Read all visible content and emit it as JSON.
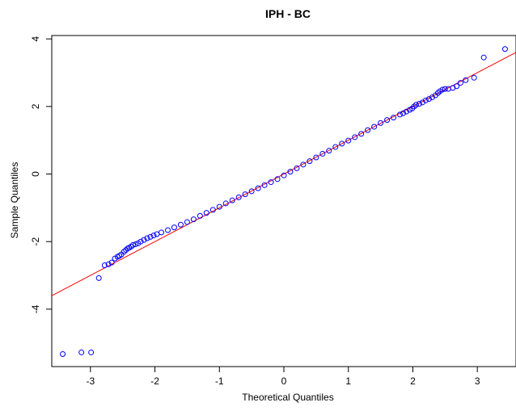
{
  "chart_data": {
    "type": "scatter",
    "title": "IPH - BC",
    "xlabel": "Theoretical Quantiles",
    "ylabel": "Sample Quantiles",
    "xlim": [
      -3.6,
      3.6
    ],
    "ylim": [
      -5.7,
      4.1
    ],
    "x_ticks": [
      -3,
      -2,
      -1,
      0,
      1,
      2,
      3
    ],
    "y_ticks": [
      -4,
      -2,
      0,
      2,
      4
    ],
    "x_tick_labels": [
      "-3",
      "-2",
      "-1",
      "0",
      "1",
      "2",
      "3"
    ],
    "y_tick_labels": [
      "-4",
      "-2",
      "0",
      "2",
      "4"
    ],
    "grid": false,
    "reference_line": {
      "slope": 1.0,
      "intercept": 0.0,
      "color": "#ff0000"
    },
    "points_color": "#0000ff",
    "points": [
      [
        -3.43,
        -5.33
      ],
      [
        -3.14,
        -5.28
      ],
      [
        -2.99,
        -5.28
      ],
      [
        -2.87,
        -3.08
      ],
      [
        -2.78,
        -2.7
      ],
      [
        -2.72,
        -2.67
      ],
      [
        -2.67,
        -2.62
      ],
      [
        -2.62,
        -2.5
      ],
      [
        -2.58,
        -2.45
      ],
      [
        -2.55,
        -2.42
      ],
      [
        -2.52,
        -2.38
      ],
      [
        -2.48,
        -2.3
      ],
      [
        -2.45,
        -2.25
      ],
      [
        -2.42,
        -2.2
      ],
      [
        -2.4,
        -2.18
      ],
      [
        -2.37,
        -2.15
      ],
      [
        -2.34,
        -2.1
      ],
      [
        -2.3,
        -2.08
      ],
      [
        -2.26,
        -2.05
      ],
      [
        -2.22,
        -2.0
      ],
      [
        -2.17,
        -1.95
      ],
      [
        -2.12,
        -1.9
      ],
      [
        -2.07,
        -1.86
      ],
      [
        -2.02,
        -1.82
      ],
      [
        -1.97,
        -1.78
      ],
      [
        -1.9,
        -1.73
      ],
      [
        -1.8,
        -1.66
      ],
      [
        -1.7,
        -1.58
      ],
      [
        -1.6,
        -1.5
      ],
      [
        -1.5,
        -1.42
      ],
      [
        -1.4,
        -1.34
      ],
      [
        -1.3,
        -1.24
      ],
      [
        -1.2,
        -1.15
      ],
      [
        -1.1,
        -1.06
      ],
      [
        -1.0,
        -0.97
      ],
      [
        -0.9,
        -0.87
      ],
      [
        -0.8,
        -0.78
      ],
      [
        -0.7,
        -0.69
      ],
      [
        -0.6,
        -0.6
      ],
      [
        -0.5,
        -0.51
      ],
      [
        -0.4,
        -0.42
      ],
      [
        -0.3,
        -0.33
      ],
      [
        -0.2,
        -0.24
      ],
      [
        -0.1,
        -0.15
      ],
      [
        0.0,
        -0.04
      ],
      [
        0.1,
        0.07
      ],
      [
        0.2,
        0.17
      ],
      [
        0.3,
        0.28
      ],
      [
        0.4,
        0.38
      ],
      [
        0.5,
        0.49
      ],
      [
        0.6,
        0.6
      ],
      [
        0.7,
        0.69
      ],
      [
        0.8,
        0.8
      ],
      [
        0.9,
        0.9
      ],
      [
        1.0,
        0.99
      ],
      [
        1.1,
        1.09
      ],
      [
        1.2,
        1.19
      ],
      [
        1.3,
        1.3
      ],
      [
        1.4,
        1.4
      ],
      [
        1.5,
        1.51
      ],
      [
        1.6,
        1.6
      ],
      [
        1.7,
        1.67
      ],
      [
        1.8,
        1.76
      ],
      [
        1.85,
        1.8
      ],
      [
        1.9,
        1.85
      ],
      [
        1.95,
        1.9
      ],
      [
        1.99,
        1.94
      ],
      [
        2.02,
        2.0
      ],
      [
        2.05,
        2.05
      ],
      [
        2.1,
        2.08
      ],
      [
        2.15,
        2.12
      ],
      [
        2.2,
        2.18
      ],
      [
        2.25,
        2.22
      ],
      [
        2.3,
        2.27
      ],
      [
        2.35,
        2.33
      ],
      [
        2.39,
        2.4
      ],
      [
        2.42,
        2.45
      ],
      [
        2.46,
        2.5
      ],
      [
        2.5,
        2.52
      ],
      [
        2.55,
        2.52
      ],
      [
        2.62,
        2.55
      ],
      [
        2.68,
        2.6
      ],
      [
        2.74,
        2.7
      ],
      [
        2.82,
        2.78
      ],
      [
        2.95,
        2.85
      ],
      [
        3.1,
        3.45
      ],
      [
        3.43,
        3.7
      ]
    ]
  }
}
